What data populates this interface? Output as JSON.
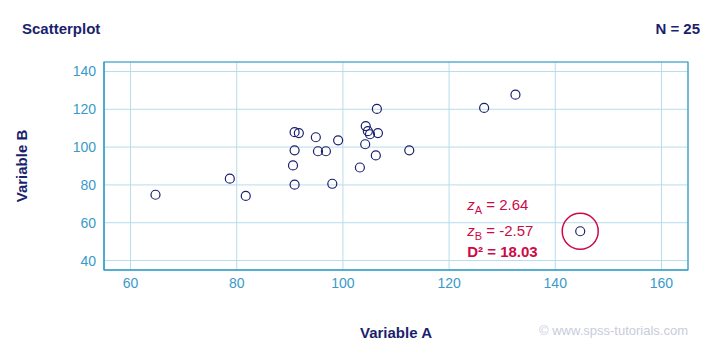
{
  "chart_data": {
    "type": "scatter",
    "title": "Scatterplot",
    "subtitle": "N = 25",
    "x_label": "Variable A",
    "y_label": "Variable B",
    "x": [
      64.7,
      78.7,
      81.7,
      90.6,
      90.9,
      91.7,
      90.9,
      90.9,
      94.9,
      95.3,
      96.8,
      98.0,
      99.1,
      103.2,
      104.2,
      104.3,
      104.7,
      105.1,
      106.4,
      106.6,
      106.2,
      112.5,
      126.6,
      132.5,
      144.7
    ],
    "values": [
      74.8,
      83.3,
      74.2,
      90.3,
      107.9,
      107.4,
      98.3,
      80.1,
      105.2,
      97.8,
      97.8,
      80.6,
      103.6,
      89.2,
      101.5,
      111.1,
      108.4,
      106.8,
      120.2,
      107.4,
      95.6,
      98.3,
      120.7,
      127.7,
      55.5
    ],
    "xlim": [
      55,
      165
    ],
    "xticks": [
      60,
      80,
      100,
      120,
      140,
      160
    ],
    "ylim": [
      35,
      145
    ],
    "yticks": [
      40,
      60,
      80,
      100,
      120,
      140
    ],
    "grid": true,
    "marker": "open_circle",
    "color": "#1b1f6e",
    "annotation": {
      "point": {
        "x": 144.7,
        "y": 55.5
      },
      "color": "#cc0a47",
      "lines": [
        [
          {
            "text": "z"
          },
          {
            "text": "A",
            "sub": true
          },
          {
            "text": " = 2.64"
          }
        ],
        [
          {
            "text": "z"
          },
          {
            "text": "B",
            "sub": true
          },
          {
            "text": " = -2.57"
          }
        ],
        [
          {
            "text": "D² = 18.03"
          }
        ]
      ]
    },
    "watermark": "© www.spss-tutorials.com"
  }
}
